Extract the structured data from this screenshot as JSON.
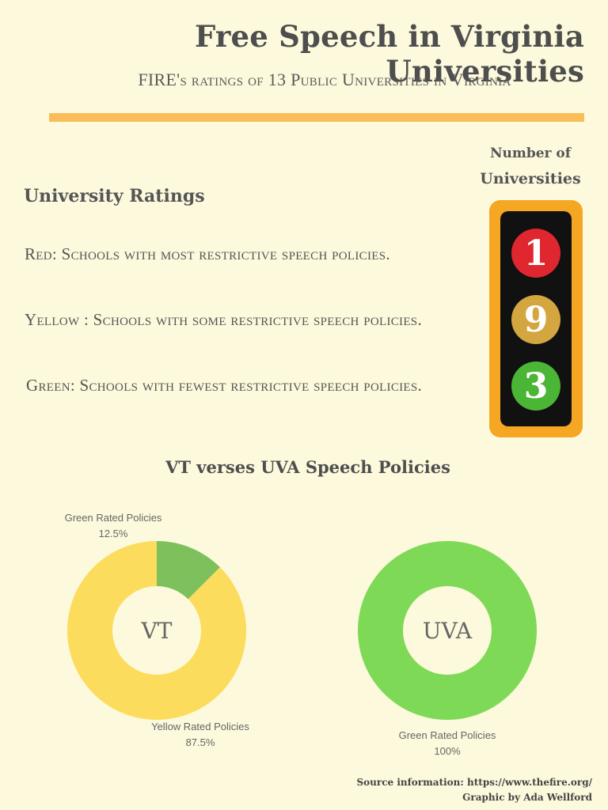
{
  "header": {
    "title": "Free Speech in Virginia Universities",
    "subtitle": "FIRE's ratings of 13 Public Universities in Virginia"
  },
  "ratings": {
    "heading": "University Ratings",
    "red": "Red: Schools with most restrictive  speech policies.",
    "yellow": "Yellow : Schools with some restrictive  speech policies.",
    "green": "Green: Schools with fewest restrictive  speech policies."
  },
  "traffic_light": {
    "label_line1": "Number of",
    "label_line2": "Universities",
    "red_count": "1",
    "yellow_count": "9",
    "green_count": "3",
    "colors": {
      "housing": "#f5a623",
      "red": "#e0262e",
      "yellow": "#d4a640",
      "green": "#4bb535"
    }
  },
  "comparison": {
    "title": "VT verses UVA Speech Policies"
  },
  "chart_data": [
    {
      "type": "pie",
      "center_label": "VT",
      "categories": [
        "Green Rated Policies",
        "Yellow Rated Policies"
      ],
      "values": [
        12.5,
        87.5
      ],
      "value_labels": [
        "12.5%",
        "87.5%"
      ],
      "colors": [
        "#7dc05c",
        "#fcdc5c"
      ]
    },
    {
      "type": "pie",
      "center_label": "UVA",
      "categories": [
        "Green Rated Policies"
      ],
      "values": [
        100
      ],
      "value_labels": [
        "100%"
      ],
      "colors": [
        "#7ed957"
      ]
    }
  ],
  "footer": {
    "source": "Source information: https://www.thefire.org/",
    "credit": "Graphic by Ada Wellford"
  }
}
